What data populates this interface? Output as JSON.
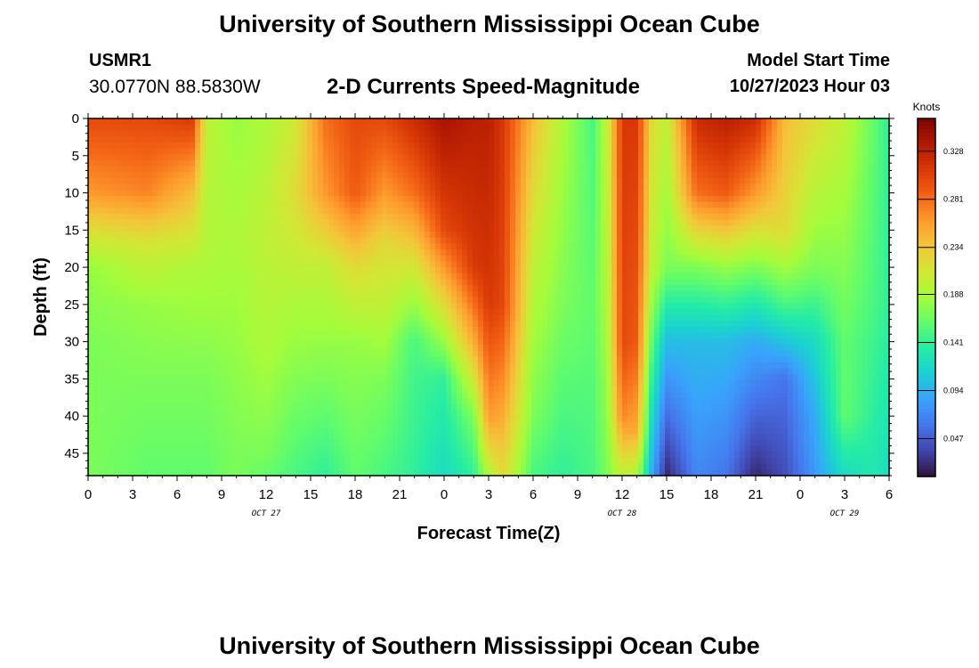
{
  "header": {
    "title": "University of Southern Mississippi Ocean Cube",
    "title_repeat": "University of Southern Mississippi Ocean Cube",
    "station_id": "USMR1",
    "station_coords": "30.0770N  88.5830W",
    "subtitle": "2-D Currents Speed-Magnitude",
    "start_label": "Model Start Time",
    "start_value": "10/27/2023 Hour 03"
  },
  "chart_data": {
    "type": "heatmap",
    "title": "2-D Currents Speed-Magnitude",
    "xlabel": "Forecast Time(Z)",
    "ylabel": "Depth (ft)",
    "x_tick_labels": [
      "0",
      "3",
      "6",
      "9",
      "12",
      "15",
      "18",
      "21",
      "0",
      "3",
      "6",
      "9",
      "12",
      "15",
      "18",
      "21",
      "0",
      "3",
      "6"
    ],
    "x_range_hours": [
      0,
      54
    ],
    "date_labels": [
      {
        "label": "OCT 27",
        "hour": 12
      },
      {
        "label": "OCT 28",
        "hour": 36
      },
      {
        "label": "OCT 29",
        "hour": 51
      }
    ],
    "y_ticks": [
      0,
      5,
      10,
      15,
      20,
      25,
      30,
      35,
      40,
      45
    ],
    "y_range_ft": [
      0,
      48
    ],
    "y_inverted": true,
    "colorbar": {
      "label": "Knots",
      "ticks": [
        0.047,
        0.094,
        0.141,
        0.188,
        0.234,
        0.281,
        0.328
      ],
      "range": [
        0.01,
        0.36
      ],
      "colormap": "turbo",
      "colors": [
        "#30123b",
        "#4145ab",
        "#4675ed",
        "#39a2fc",
        "#1bcfd4",
        "#24eca6",
        "#61fc6c",
        "#a4fc3b",
        "#d1e834",
        "#f3c63a",
        "#fe9b2d",
        "#f36315",
        "#d93806",
        "#b11901",
        "#7a0402"
      ]
    },
    "speed_profiles": [
      {
        "hour": 0,
        "speed_by_depth": [
          [
            0,
            0.3
          ],
          [
            10,
            0.26
          ],
          [
            16,
            0.21
          ],
          [
            20,
            0.18
          ],
          [
            30,
            0.17
          ],
          [
            45,
            0.17
          ],
          [
            48,
            0.17
          ]
        ]
      },
      {
        "hour": 4,
        "speed_by_depth": [
          [
            0,
            0.3
          ],
          [
            10,
            0.27
          ],
          [
            17,
            0.21
          ],
          [
            25,
            0.18
          ],
          [
            35,
            0.17
          ],
          [
            48,
            0.16
          ]
        ]
      },
      {
        "hour": 7,
        "speed_by_depth": [
          [
            0,
            0.31
          ],
          [
            10,
            0.24
          ],
          [
            20,
            0.19
          ],
          [
            35,
            0.17
          ],
          [
            48,
            0.16
          ]
        ]
      },
      {
        "hour": 8,
        "speed_by_depth": [
          [
            0,
            0.2
          ],
          [
            20,
            0.19
          ],
          [
            35,
            0.17
          ],
          [
            48,
            0.16
          ]
        ]
      },
      {
        "hour": 10,
        "speed_by_depth": [
          [
            0,
            0.18
          ],
          [
            15,
            0.19
          ],
          [
            30,
            0.18
          ],
          [
            45,
            0.17
          ],
          [
            48,
            0.17
          ]
        ]
      },
      {
        "hour": 12,
        "speed_by_depth": [
          [
            0,
            0.19
          ],
          [
            15,
            0.2
          ],
          [
            30,
            0.19
          ],
          [
            45,
            0.17
          ],
          [
            48,
            0.16
          ]
        ]
      },
      {
        "hour": 14,
        "speed_by_depth": [
          [
            0,
            0.21
          ],
          [
            10,
            0.22
          ],
          [
            25,
            0.19
          ],
          [
            42,
            0.16
          ],
          [
            48,
            0.15
          ]
        ]
      },
      {
        "hour": 16,
        "speed_by_depth": [
          [
            0,
            0.28
          ],
          [
            10,
            0.26
          ],
          [
            20,
            0.2
          ],
          [
            35,
            0.17
          ],
          [
            48,
            0.14
          ]
        ]
      },
      {
        "hour": 18,
        "speed_by_depth": [
          [
            0,
            0.3
          ],
          [
            10,
            0.29
          ],
          [
            20,
            0.22
          ],
          [
            30,
            0.18
          ],
          [
            48,
            0.16
          ]
        ]
      },
      {
        "hour": 20,
        "speed_by_depth": [
          [
            0,
            0.3
          ],
          [
            10,
            0.26
          ],
          [
            17,
            0.22
          ],
          [
            25,
            0.2
          ],
          [
            35,
            0.17
          ],
          [
            48,
            0.15
          ]
        ]
      },
      {
        "hour": 22,
        "speed_by_depth": [
          [
            0,
            0.32
          ],
          [
            10,
            0.28
          ],
          [
            20,
            0.21
          ],
          [
            30,
            0.15
          ],
          [
            48,
            0.14
          ]
        ]
      },
      {
        "hour": 24,
        "speed_by_depth": [
          [
            0,
            0.34
          ],
          [
            15,
            0.3
          ],
          [
            25,
            0.22
          ],
          [
            35,
            0.14
          ],
          [
            48,
            0.12
          ]
        ]
      },
      {
        "hour": 26,
        "speed_by_depth": [
          [
            0,
            0.33
          ],
          [
            20,
            0.31
          ],
          [
            30,
            0.25
          ],
          [
            40,
            0.17
          ],
          [
            48,
            0.14
          ]
        ]
      },
      {
        "hour": 27,
        "speed_by_depth": [
          [
            0,
            0.33
          ],
          [
            25,
            0.31
          ],
          [
            40,
            0.26
          ],
          [
            46,
            0.21
          ],
          [
            48,
            0.19
          ]
        ]
      },
      {
        "hour": 28,
        "speed_by_depth": [
          [
            0,
            0.31
          ],
          [
            25,
            0.3
          ],
          [
            40,
            0.25
          ],
          [
            48,
            0.22
          ]
        ]
      },
      {
        "hour": 30,
        "speed_by_depth": [
          [
            0,
            0.24
          ],
          [
            20,
            0.2
          ],
          [
            40,
            0.17
          ],
          [
            48,
            0.15
          ]
        ]
      },
      {
        "hour": 32,
        "speed_by_depth": [
          [
            0,
            0.19
          ],
          [
            25,
            0.17
          ],
          [
            48,
            0.14
          ]
        ]
      },
      {
        "hour": 34,
        "speed_by_depth": [
          [
            0,
            0.15
          ],
          [
            25,
            0.16
          ],
          [
            48,
            0.15
          ]
        ]
      },
      {
        "hour": 35,
        "speed_by_depth": [
          [
            0,
            0.2
          ],
          [
            25,
            0.19
          ],
          [
            48,
            0.17
          ]
        ]
      },
      {
        "hour": 36,
        "speed_by_depth": [
          [
            0,
            0.31
          ],
          [
            30,
            0.3
          ],
          [
            40,
            0.27
          ],
          [
            48,
            0.2
          ]
        ]
      },
      {
        "hour": 37,
        "speed_by_depth": [
          [
            0,
            0.31
          ],
          [
            30,
            0.29
          ],
          [
            42,
            0.25
          ],
          [
            48,
            0.19
          ]
        ]
      },
      {
        "hour": 38,
        "speed_by_depth": [
          [
            0,
            0.22
          ],
          [
            20,
            0.2
          ],
          [
            35,
            0.14
          ],
          [
            48,
            0.09
          ]
        ]
      },
      {
        "hour": 39,
        "speed_by_depth": [
          [
            0,
            0.2
          ],
          [
            20,
            0.17
          ],
          [
            30,
            0.1
          ],
          [
            48,
            0.02
          ]
        ]
      },
      {
        "hour": 41,
        "speed_by_depth": [
          [
            0,
            0.32
          ],
          [
            10,
            0.28
          ],
          [
            20,
            0.17
          ],
          [
            30,
            0.1
          ],
          [
            48,
            0.07
          ]
        ]
      },
      {
        "hour": 43,
        "speed_by_depth": [
          [
            0,
            0.33
          ],
          [
            10,
            0.29
          ],
          [
            20,
            0.18
          ],
          [
            30,
            0.1
          ],
          [
            48,
            0.06
          ]
        ]
      },
      {
        "hour": 45,
        "speed_by_depth": [
          [
            0,
            0.32
          ],
          [
            10,
            0.26
          ],
          [
            20,
            0.17
          ],
          [
            30,
            0.09
          ],
          [
            48,
            0.02
          ]
        ]
      },
      {
        "hour": 47,
        "speed_by_depth": [
          [
            0,
            0.24
          ],
          [
            15,
            0.22
          ],
          [
            25,
            0.15
          ],
          [
            35,
            0.06
          ],
          [
            48,
            0.04
          ]
        ]
      },
      {
        "hour": 49,
        "speed_by_depth": [
          [
            0,
            0.22
          ],
          [
            20,
            0.17
          ],
          [
            30,
            0.12
          ],
          [
            40,
            0.09
          ],
          [
            48,
            0.08
          ]
        ]
      },
      {
        "hour": 51,
        "speed_by_depth": [
          [
            0,
            0.2
          ],
          [
            15,
            0.18
          ],
          [
            30,
            0.16
          ],
          [
            40,
            0.16
          ],
          [
            48,
            0.12
          ]
        ]
      },
      {
        "hour": 53,
        "speed_by_depth": [
          [
            0,
            0.16
          ],
          [
            25,
            0.15
          ],
          [
            48,
            0.13
          ]
        ]
      },
      {
        "hour": 54,
        "speed_by_depth": [
          [
            0,
            0.14
          ],
          [
            25,
            0.14
          ],
          [
            48,
            0.12
          ]
        ]
      }
    ]
  }
}
